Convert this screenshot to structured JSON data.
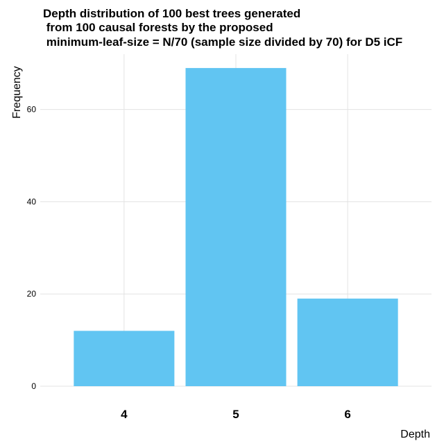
{
  "chart_data": {
    "type": "bar",
    "title_lines": [
      "Depth distribution of 100 best trees generated",
      " from 100 causal forests by the proposed",
      " minimum-leaf-size = N/70 (sample size divided by 70) for D5 iCF"
    ],
    "xlabel": "Depth",
    "ylabel": "Frequency",
    "categories": [
      "4",
      "5",
      "6"
    ],
    "values": [
      12,
      69,
      19
    ],
    "ylim": [
      0,
      72
    ],
    "yticks": [
      0,
      20,
      40,
      60
    ],
    "grid": true,
    "bar_color": "#61c5f2",
    "grid_color": "#e3e3e3"
  }
}
